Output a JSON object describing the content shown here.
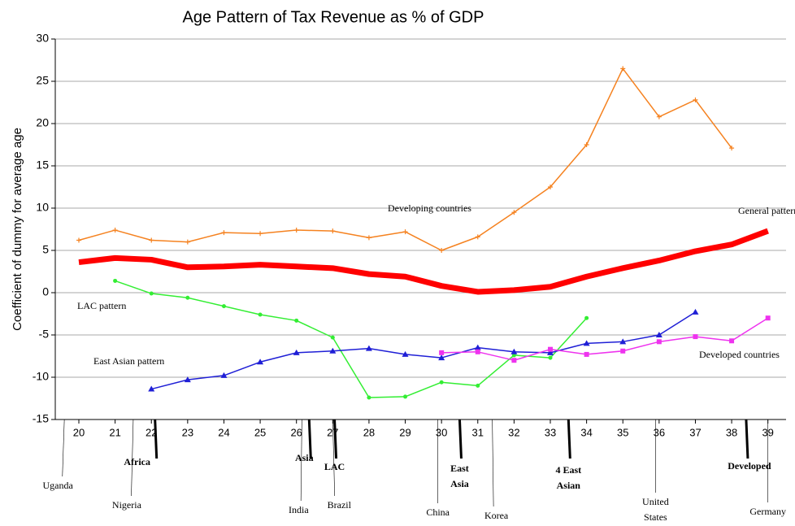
{
  "chart_data": {
    "type": "line",
    "title": "Age Pattern of Tax Revenue as % of GDP",
    "y_label": "Coefficient of dummy for average age",
    "x": [
      20,
      21,
      22,
      23,
      24,
      25,
      26,
      27,
      28,
      29,
      30,
      31,
      32,
      33,
      34,
      35,
      36,
      37,
      38,
      39
    ],
    "xlim": [
      19.35,
      39.5
    ],
    "ylim": [
      -15,
      30
    ],
    "yticks": [
      -15,
      -10,
      -5,
      0,
      5,
      10,
      15,
      20,
      25,
      30
    ],
    "grid": true,
    "series": [
      {
        "name": "Developing countries",
        "color": "#f58220",
        "marker": "plus",
        "width": 1.5,
        "values": [
          6.2,
          7.4,
          6.2,
          6.0,
          7.1,
          7.0,
          7.4,
          7.3,
          6.5,
          7.2,
          5.0,
          6.6,
          9.5,
          12.5,
          17.5,
          26.5,
          20.8,
          22.8,
          17.1,
          null
        ]
      },
      {
        "name": "General pattern",
        "color": "#ff0000",
        "marker": "none",
        "width": 7,
        "values": [
          3.6,
          4.1,
          3.9,
          3.0,
          3.1,
          3.3,
          3.1,
          2.9,
          2.2,
          1.9,
          0.8,
          0.1,
          0.3,
          0.7,
          1.9,
          2.9,
          3.8,
          4.9,
          5.7,
          7.3
        ]
      },
      {
        "name": "LAC pattern",
        "color": "#33ee33",
        "marker": "circle",
        "width": 1.5,
        "values": [
          null,
          1.4,
          -0.1,
          -0.6,
          -1.6,
          -2.6,
          -3.3,
          -5.3,
          -12.4,
          -12.3,
          -10.6,
          -11.0,
          -7.4,
          -7.7,
          -3.0,
          null,
          null,
          null,
          null,
          null
        ]
      },
      {
        "name": "East Asian pattern",
        "color": "#1f1fd6",
        "marker": "triangle",
        "width": 1.5,
        "values": [
          null,
          null,
          -11.4,
          -10.3,
          -9.8,
          -8.2,
          -7.1,
          -6.9,
          -6.6,
          -7.3,
          -7.7,
          -6.5,
          -7.0,
          -7.1,
          -6.0,
          -5.8,
          -5.0,
          -2.3,
          null,
          null
        ]
      },
      {
        "name": "Developed countries",
        "color": "#ee33ee",
        "marker": "square",
        "width": 1.5,
        "values": [
          null,
          null,
          null,
          null,
          null,
          null,
          null,
          null,
          null,
          null,
          -7.1,
          -7.0,
          -8.0,
          -6.7,
          -7.3,
          -6.9,
          -5.8,
          -5.2,
          -5.7,
          -3.0
        ]
      }
    ],
    "countries": [
      {
        "label": "Uganda",
        "x": 19.6
      },
      {
        "label": "Nigeria",
        "x": 21.5
      },
      {
        "label": "India",
        "x": 26.15
      },
      {
        "label": "Brazil",
        "x": 27.0
      },
      {
        "label": "China",
        "x": 29.9
      },
      {
        "label": "Korea",
        "x": 31.4
      },
      {
        "label": "United States",
        "x": 35.9
      },
      {
        "label": "Germany",
        "x": 39.0
      }
    ],
    "regions": [
      {
        "label": "Africa",
        "x": 22.1
      },
      {
        "label": "Asia",
        "x": 26.35
      },
      {
        "label": "LAC",
        "x": 27.05
      },
      {
        "label": "East Asia",
        "x": 30.5
      },
      {
        "label": "4 East Asian",
        "x": 33.5
      },
      {
        "label": "Developed",
        "x": 38.4
      }
    ]
  }
}
